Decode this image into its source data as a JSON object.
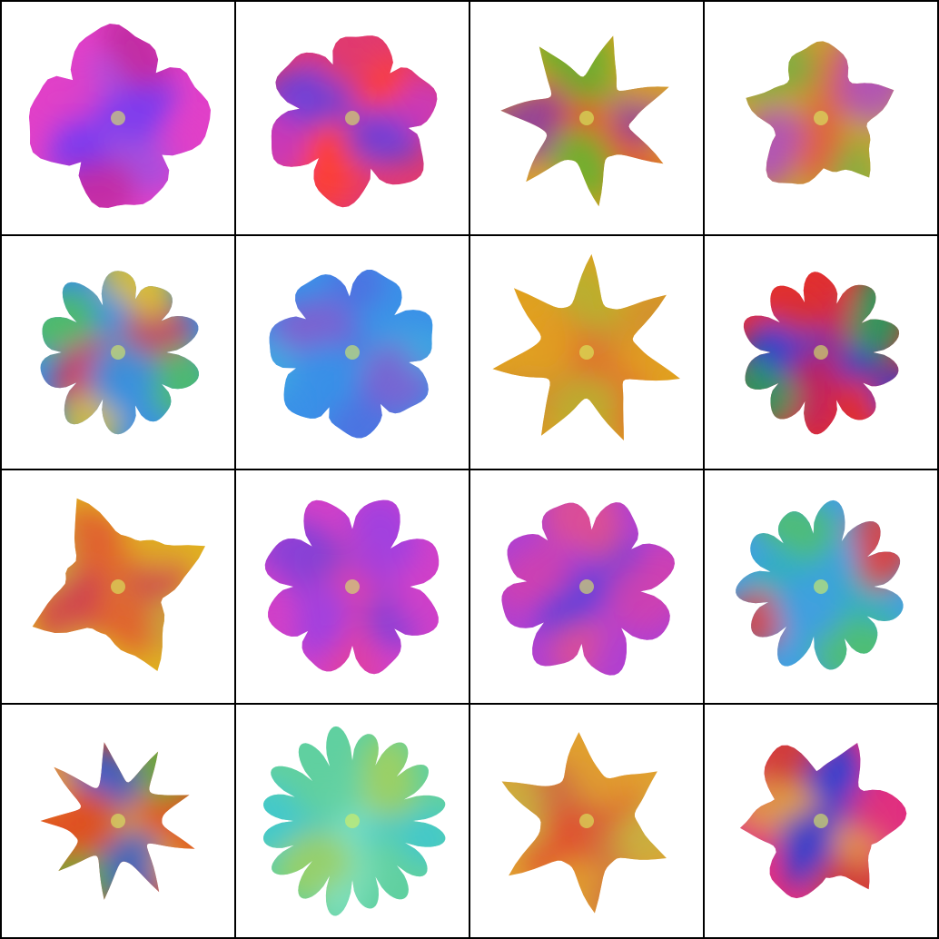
{
  "grid": {
    "rows": 4,
    "cols": 4,
    "border_color": "#000000",
    "background": "#ffffff"
  },
  "tiles": [
    {
      "row": 0,
      "col": 0,
      "petals": 4,
      "shape": "round",
      "rot": 40,
      "scale": 1.0,
      "colors": [
        "#e040c8",
        "#7a3cf0",
        "#c02aa0",
        "#a050e0"
      ]
    },
    {
      "row": 0,
      "col": 1,
      "petals": 6,
      "shape": "round",
      "rot": 10,
      "scale": 0.95,
      "colors": [
        "#e03a70",
        "#7040d8",
        "#c838c0",
        "#ff4030"
      ]
    },
    {
      "row": 0,
      "col": 2,
      "petals": 7,
      "shape": "pointed",
      "rot": 5,
      "scale": 0.95,
      "colors": [
        "#d8a020",
        "#6ab030",
        "#e05030",
        "#9040a0"
      ]
    },
    {
      "row": 0,
      "col": 3,
      "petals": 5,
      "shape": "mixed",
      "rot": 15,
      "scale": 0.85,
      "colors": [
        "#c8a030",
        "#b050c0",
        "#e06040",
        "#80b040"
      ]
    },
    {
      "row": 1,
      "col": 0,
      "petals": 10,
      "shape": "round",
      "rot": 0,
      "scale": 0.9,
      "colors": [
        "#3a90e0",
        "#50c060",
        "#d04060",
        "#e0c030"
      ]
    },
    {
      "row": 1,
      "col": 1,
      "petals": 7,
      "shape": "round",
      "rot": 10,
      "scale": 0.95,
      "colors": [
        "#3a90e8",
        "#5070e0",
        "#8060d0",
        "#40a8e0"
      ]
    },
    {
      "row": 1,
      "col": 2,
      "petals": 7,
      "shape": "pointed",
      "rot": -10,
      "scale": 1.05,
      "colors": [
        "#e0a020",
        "#d09030",
        "#b8b030",
        "#e07030"
      ]
    },
    {
      "row": 1,
      "col": 3,
      "petals": 10,
      "shape": "round",
      "rot": 0,
      "scale": 0.88,
      "colors": [
        "#e03030",
        "#3040d0",
        "#20a060",
        "#c02060"
      ]
    },
    {
      "row": 2,
      "col": 0,
      "petals": 4,
      "shape": "pointed",
      "rot": 20,
      "scale": 1.05,
      "colors": [
        "#e0b020",
        "#e06030",
        "#c8a040",
        "#d04050"
      ]
    },
    {
      "row": 2,
      "col": 1,
      "petals": 8,
      "shape": "round",
      "rot": 0,
      "scale": 1.0,
      "colors": [
        "#d040c8",
        "#a040e0",
        "#e040a0",
        "#8040d8"
      ]
    },
    {
      "row": 2,
      "col": 2,
      "petals": 8,
      "shape": "round",
      "rot": 5,
      "scale": 0.98,
      "colors": [
        "#b040d0",
        "#d040b0",
        "#6040d8",
        "#e05090"
      ]
    },
    {
      "row": 2,
      "col": 3,
      "petals": 11,
      "shape": "round",
      "rot": 0,
      "scale": 0.92,
      "colors": [
        "#40a0e0",
        "#50c070",
        "#30b0c0",
        "#e04040"
      ]
    },
    {
      "row": 3,
      "col": 0,
      "petals": 9,
      "shape": "pointed",
      "rot": 0,
      "scale": 0.88,
      "colors": [
        "#e05020",
        "#60b040",
        "#3060d0",
        "#e0a030"
      ]
    },
    {
      "row": 3,
      "col": 1,
      "petals": 16,
      "shape": "round",
      "rot": 0,
      "scale": 1.02,
      "colors": [
        "#60d0a0",
        "#40c8d0",
        "#a0d060",
        "#80e0c0"
      ]
    },
    {
      "row": 3,
      "col": 2,
      "petals": 6,
      "shape": "pointed",
      "rot": -5,
      "scale": 1.0,
      "colors": [
        "#e0a030",
        "#d07040",
        "#c8b040",
        "#e05030"
      ]
    },
    {
      "row": 3,
      "col": 3,
      "petals": 6,
      "shape": "mixed",
      "rot": 25,
      "scale": 0.92,
      "colors": [
        "#e03080",
        "#3040d0",
        "#d04030",
        "#e0a040"
      ]
    }
  ]
}
